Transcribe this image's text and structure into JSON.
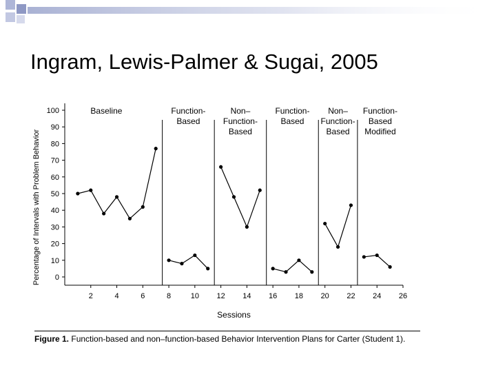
{
  "slide": {
    "title": "Ingram, Lewis-Palmer & Sugai, 2005",
    "colors": {
      "decoration": "#9aa4cc",
      "ink": "#000000"
    }
  },
  "figure": {
    "caption_label": "Figure 1.",
    "caption_text": "Function-based and non–function-based Behavior Intervention Plans for Carter (Student 1)."
  },
  "chart_data": {
    "type": "line",
    "title": "",
    "xlabel": "Sessions",
    "ylabel": "Percentage of Intervals with Problem Behavior",
    "xlim": [
      0,
      26
    ],
    "ylim": [
      0,
      100
    ],
    "x_ticks": [
      "2",
      "4",
      "6",
      "8",
      "10",
      "12",
      "14",
      "16",
      "18",
      "20",
      "22",
      "24",
      "26"
    ],
    "y_ticks": [
      "0",
      "10",
      "20",
      "30",
      "40",
      "50",
      "60",
      "70",
      "80",
      "90",
      "100"
    ],
    "phase_change_lines": [
      7.5,
      11.5,
      15.5,
      19.5,
      22.5
    ],
    "phases": [
      {
        "label": [
          "Baseline"
        ],
        "x": [
          1,
          2,
          3,
          4,
          5,
          6,
          7
        ],
        "y": [
          50,
          52,
          38,
          48,
          35,
          42,
          77
        ]
      },
      {
        "label": [
          "Function-",
          "Based"
        ],
        "x": [
          8,
          9,
          10,
          11
        ],
        "y": [
          10,
          8,
          13,
          5
        ]
      },
      {
        "label": [
          "Non–",
          "Function-",
          "Based"
        ],
        "x": [
          12,
          13,
          14,
          15
        ],
        "y": [
          66,
          48,
          30,
          52
        ]
      },
      {
        "label": [
          "Function-",
          "Based"
        ],
        "x": [
          16,
          17,
          18,
          19
        ],
        "y": [
          5,
          3,
          10,
          3
        ]
      },
      {
        "label": [
          "Non–",
          "Function-",
          "Based"
        ],
        "x": [
          20,
          21,
          22
        ],
        "y": [
          32,
          18,
          43
        ]
      },
      {
        "label": [
          "Function-",
          "Based",
          "Modified"
        ],
        "x": [
          23,
          24,
          25
        ],
        "y": [
          12,
          13,
          6
        ]
      }
    ]
  }
}
